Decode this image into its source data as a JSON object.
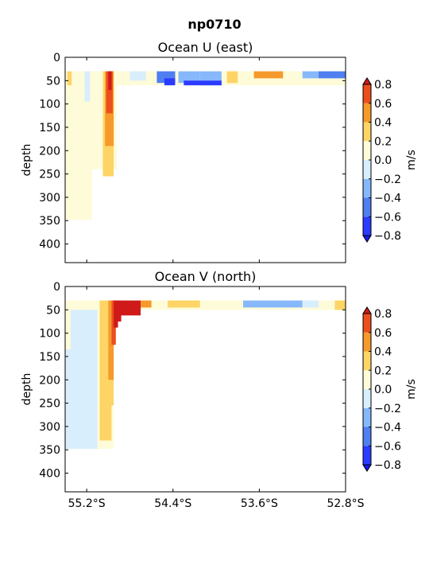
{
  "figure": {
    "title": "np0710"
  },
  "chart_data": [
    {
      "type": "heatmap",
      "title": "Ocean U (east)",
      "ylabel": "depth",
      "xlim_lat": [
        -55.4,
        -52.8
      ],
      "ylim": [
        440,
        0
      ],
      "yticks": [
        0,
        50,
        100,
        150,
        200,
        250,
        300,
        350,
        400
      ],
      "yticklabels": [
        "0",
        "50",
        "100",
        "150",
        "200",
        "250",
        "300",
        "350",
        "400"
      ],
      "xticks": [
        -55.2,
        -54.4,
        -53.6,
        -52.8
      ],
      "xticklabels": [],
      "colorbar": {
        "label": "m/s",
        "levels": [
          -0.8,
          -0.6,
          -0.4,
          -0.2,
          0.0,
          0.2,
          0.4,
          0.6,
          0.8
        ],
        "ticklabels": [
          "−0.8",
          "−0.6",
          "−0.4",
          "−0.2",
          "0.0",
          "0.2",
          "0.4",
          "0.6",
          "0.8"
        ],
        "colors": [
          "#2b3bff",
          "#4f7ff0",
          "#86b8fb",
          "#d8eefc",
          "#fefbd8",
          "#fdd465",
          "#f59a2b",
          "#ec4f1e"
        ],
        "extend_low_color": "#1a1af0",
        "extend_high_color": "#d01a1a"
      },
      "regions": [
        {
          "lat": [
            -55.4,
            -52.8
          ],
          "depth": [
            30,
            60
          ],
          "value": 0.1
        },
        {
          "lat": [
            -55.4,
            -55.15
          ],
          "depth": [
            60,
            348
          ],
          "value": 0.1
        },
        {
          "lat": [
            -55.15,
            -54.92
          ],
          "depth": [
            60,
            240
          ],
          "value": 0.1
        },
        {
          "lat": [
            -55.38,
            -55.34
          ],
          "depth": [
            30,
            60
          ],
          "value": 0.3
        },
        {
          "lat": [
            -55.05,
            -54.95
          ],
          "depth": [
            30,
            255
          ],
          "value": 0.3
        },
        {
          "lat": [
            -55.03,
            -54.95
          ],
          "depth": [
            30,
            190
          ],
          "value": 0.5
        },
        {
          "lat": [
            -55.02,
            -54.96
          ],
          "depth": [
            30,
            120
          ],
          "value": 0.7
        },
        {
          "lat": [
            -55.0,
            -54.97
          ],
          "depth": [
            30,
            70
          ],
          "value": 0.9
        },
        {
          "lat": [
            -55.22,
            -55.17
          ],
          "depth": [
            30,
            95
          ],
          "value": -0.1
        },
        {
          "lat": [
            -54.8,
            -54.65
          ],
          "depth": [
            30,
            50
          ],
          "value": -0.1
        },
        {
          "lat": [
            -54.55,
            -54.38
          ],
          "depth": [
            30,
            55
          ],
          "value": -0.5
        },
        {
          "lat": [
            -54.48,
            -54.38
          ],
          "depth": [
            45,
            60
          ],
          "value": -0.7
        },
        {
          "lat": [
            -54.35,
            -54.15
          ],
          "depth": [
            30,
            55
          ],
          "value": -0.3
        },
        {
          "lat": [
            -54.15,
            -53.95
          ],
          "depth": [
            30,
            60
          ],
          "value": -0.3
        },
        {
          "lat": [
            -54.3,
            -53.95
          ],
          "depth": [
            50,
            60
          ],
          "value": -0.7
        },
        {
          "lat": [
            -53.9,
            -53.8
          ],
          "depth": [
            30,
            55
          ],
          "value": 0.3
        },
        {
          "lat": [
            -53.75,
            -53.65
          ],
          "depth": [
            30,
            50
          ],
          "value": 0.1
        },
        {
          "lat": [
            -53.65,
            -53.38
          ],
          "depth": [
            30,
            45
          ],
          "value": 0.5
        },
        {
          "lat": [
            -53.2,
            -53.05
          ],
          "depth": [
            30,
            45
          ],
          "value": -0.3
        },
        {
          "lat": [
            -53.05,
            -52.8
          ],
          "depth": [
            30,
            45
          ],
          "value": -0.5
        }
      ]
    },
    {
      "type": "heatmap",
      "title": "Ocean V (north)",
      "ylabel": "depth",
      "xlim_lat": [
        -55.4,
        -52.8
      ],
      "ylim": [
        440,
        0
      ],
      "yticks": [
        0,
        50,
        100,
        150,
        200,
        250,
        300,
        350,
        400
      ],
      "yticklabels": [
        "0",
        "50",
        "100",
        "150",
        "200",
        "250",
        "300",
        "350",
        "400"
      ],
      "xticks": [
        -55.2,
        -54.4,
        -53.6,
        -52.8
      ],
      "xticklabels": [
        "55.2°S",
        "54.4°S",
        "53.6°S",
        "52.8°S"
      ],
      "colorbar": {
        "label": "m/s",
        "levels": [
          -0.8,
          -0.6,
          -0.4,
          -0.2,
          0.0,
          0.2,
          0.4,
          0.6,
          0.8
        ],
        "ticklabels": [
          "−0.8",
          "−0.6",
          "−0.4",
          "−0.2",
          "0.0",
          "0.2",
          "0.4",
          "0.6",
          "0.8"
        ],
        "colors": [
          "#2b3bff",
          "#4f7ff0",
          "#86b8fb",
          "#d8eefc",
          "#fefbd8",
          "#fdd465",
          "#f59a2b",
          "#ec4f1e"
        ],
        "extend_low_color": "#1a1af0",
        "extend_high_color": "#d01a1a"
      },
      "regions": [
        {
          "lat": [
            -55.4,
            -52.8
          ],
          "depth": [
            30,
            50
          ],
          "value": 0.1
        },
        {
          "lat": [
            -55.4,
            -55.1
          ],
          "depth": [
            50,
            348
          ],
          "value": -0.1
        },
        {
          "lat": [
            -55.1,
            -54.95
          ],
          "depth": [
            50,
            348
          ],
          "value": 0.1
        },
        {
          "lat": [
            -55.4,
            -55.35
          ],
          "depth": [
            50,
            135
          ],
          "value": 0.1
        },
        {
          "lat": [
            -55.08,
            -54.97
          ],
          "depth": [
            30,
            330
          ],
          "value": 0.3
        },
        {
          "lat": [
            -55.03,
            -54.95
          ],
          "depth": [
            30,
            255
          ],
          "value": 0.3
        },
        {
          "lat": [
            -55.0,
            -54.95
          ],
          "depth": [
            30,
            200
          ],
          "value": 0.5
        },
        {
          "lat": [
            -54.97,
            -54.93
          ],
          "depth": [
            30,
            125
          ],
          "value": 0.7
        },
        {
          "lat": [
            -54.95,
            -54.91
          ],
          "depth": [
            30,
            88
          ],
          "value": 0.9
        },
        {
          "lat": [
            -54.93,
            -54.88
          ],
          "depth": [
            30,
            75
          ],
          "value": 0.9
        },
        {
          "lat": [
            -54.9,
            -54.7
          ],
          "depth": [
            30,
            62
          ],
          "value": 0.9
        },
        {
          "lat": [
            -54.7,
            -54.6
          ],
          "depth": [
            30,
            45
          ],
          "value": 0.5
        },
        {
          "lat": [
            -54.45,
            -54.15
          ],
          "depth": [
            30,
            45
          ],
          "value": 0.3
        },
        {
          "lat": [
            -54.0,
            -53.85
          ],
          "depth": [
            30,
            50
          ],
          "value": 0.1
        },
        {
          "lat": [
            -53.75,
            -53.2
          ],
          "depth": [
            30,
            45
          ],
          "value": -0.3
        },
        {
          "lat": [
            -53.2,
            -53.05
          ],
          "depth": [
            30,
            45
          ],
          "value": -0.1
        },
        {
          "lat": [
            -52.9,
            -52.8
          ],
          "depth": [
            30,
            50
          ],
          "value": 0.3
        }
      ]
    }
  ]
}
